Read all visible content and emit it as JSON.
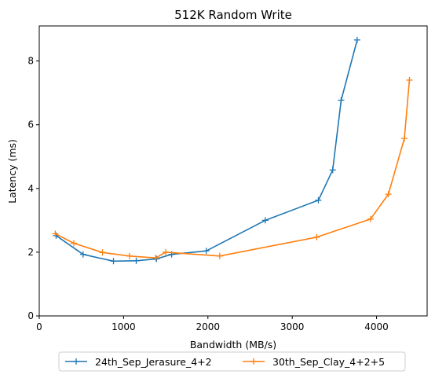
{
  "chart_data": {
    "type": "line",
    "title": "512K  Random Write",
    "xlabel": "Bandwidth (MB/s)",
    "ylabel": "Latency (ms)",
    "xlim": [
      0,
      4600
    ],
    "ylim": [
      0,
      9.1
    ],
    "xticks": [
      0,
      1000,
      2000,
      3000,
      4000
    ],
    "yticks": [
      0,
      2,
      4,
      6,
      8
    ],
    "marker": "+",
    "grid": false,
    "legend_position": "below",
    "series": [
      {
        "name": "24th_Sep_Jerasure_4+2",
        "color": "#1f77b4",
        "points": [
          [
            200,
            2.52
          ],
          [
            520,
            1.93
          ],
          [
            880,
            1.72
          ],
          [
            1150,
            1.73
          ],
          [
            1390,
            1.79
          ],
          [
            1570,
            1.93
          ],
          [
            1980,
            2.04
          ],
          [
            2680,
            3.0
          ],
          [
            3310,
            3.63
          ],
          [
            3480,
            4.58
          ],
          [
            3580,
            6.77
          ],
          [
            3770,
            8.66
          ]
        ]
      },
      {
        "name": "30th_Sep_Clay_4+2+5",
        "color": "#ff7f0e",
        "points": [
          [
            190,
            2.58
          ],
          [
            410,
            2.28
          ],
          [
            750,
            1.99
          ],
          [
            1070,
            1.88
          ],
          [
            1380,
            1.82
          ],
          [
            1500,
            2.0
          ],
          [
            2140,
            1.88
          ],
          [
            3290,
            2.47
          ],
          [
            3930,
            3.04
          ],
          [
            4140,
            3.82
          ],
          [
            4330,
            5.57
          ],
          [
            4390,
            7.4
          ]
        ]
      }
    ]
  }
}
